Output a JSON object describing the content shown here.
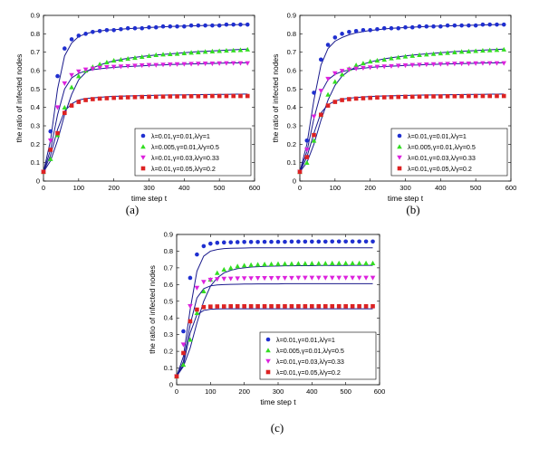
{
  "chart_data": [
    {
      "type": "scatter",
      "panel_label": "(a)",
      "xlabel": "time step t",
      "ylabel": "the ratio of infected nodes",
      "xlim": [
        0,
        600
      ],
      "ylim": [
        0,
        0.9
      ],
      "xticks": [
        "0",
        "100",
        "200",
        "300",
        "400",
        "500",
        "600"
      ],
      "yticks": [
        "0",
        "0.1",
        "0.2",
        "0.3",
        "0.4",
        "0.5",
        "0.6",
        "0.7",
        "0.8",
        "0.9"
      ],
      "grid": false,
      "legend_position": "bottom-right",
      "x": [
        0,
        20,
        40,
        60,
        80,
        100,
        120,
        140,
        160,
        180,
        200,
        220,
        240,
        260,
        280,
        300,
        320,
        340,
        360,
        380,
        400,
        420,
        440,
        460,
        480,
        500,
        520,
        540,
        560,
        580
      ],
      "series": [
        {
          "name": "λ=0.01,γ=0.01,λ/γ=1",
          "color": "#1f2fd0",
          "marker": "circle",
          "values": [
            0.05,
            0.27,
            0.57,
            0.72,
            0.77,
            0.79,
            0.8,
            0.81,
            0.815,
            0.82,
            0.82,
            0.825,
            0.83,
            0.83,
            0.83,
            0.835,
            0.835,
            0.84,
            0.84,
            0.84,
            0.84,
            0.845,
            0.845,
            0.845,
            0.845,
            0.845,
            0.85,
            0.85,
            0.85,
            0.85
          ],
          "fit": [
            0.05,
            0.22,
            0.5,
            0.68,
            0.75,
            0.785,
            0.8,
            0.81,
            0.815,
            0.82,
            0.822,
            0.825,
            0.828,
            0.83,
            0.832,
            0.834,
            0.836,
            0.838,
            0.84,
            0.841,
            0.842,
            0.843,
            0.844,
            0.845,
            0.846,
            0.847,
            0.848,
            0.849,
            0.85,
            0.85
          ]
        },
        {
          "name": "λ=0.005,γ=0.01,λ/γ=0.5",
          "color": "#33dd22",
          "marker": "triangle-up",
          "values": [
            0.05,
            0.12,
            0.25,
            0.4,
            0.51,
            0.57,
            0.6,
            0.62,
            0.635,
            0.645,
            0.655,
            0.66,
            0.665,
            0.67,
            0.675,
            0.68,
            0.685,
            0.688,
            0.69,
            0.692,
            0.695,
            0.698,
            0.7,
            0.703,
            0.705,
            0.707,
            0.709,
            0.71,
            0.712,
            0.715
          ],
          "fit": [
            0.05,
            0.11,
            0.22,
            0.36,
            0.47,
            0.55,
            0.59,
            0.615,
            0.63,
            0.643,
            0.653,
            0.66,
            0.667,
            0.672,
            0.677,
            0.681,
            0.685,
            0.688,
            0.691,
            0.694,
            0.697,
            0.7,
            0.703,
            0.705,
            0.707,
            0.709,
            0.711,
            0.713,
            0.715,
            0.717
          ]
        },
        {
          "name": "λ=0.01,γ=0.03,λ/γ=0.33",
          "color": "#dd22dd",
          "marker": "triangle-down",
          "values": [
            0.05,
            0.22,
            0.4,
            0.53,
            0.575,
            0.595,
            0.605,
            0.61,
            0.615,
            0.618,
            0.62,
            0.622,
            0.624,
            0.626,
            0.628,
            0.63,
            0.63,
            0.632,
            0.633,
            0.634,
            0.635,
            0.636,
            0.637,
            0.638,
            0.638,
            0.639,
            0.64,
            0.64,
            0.64,
            0.64
          ],
          "fit": [
            0.05,
            0.17,
            0.36,
            0.5,
            0.56,
            0.585,
            0.598,
            0.605,
            0.61,
            0.614,
            0.617,
            0.62,
            0.622,
            0.624,
            0.626,
            0.628,
            0.63,
            0.631,
            0.633,
            0.634,
            0.635,
            0.636,
            0.637,
            0.638,
            0.639,
            0.64,
            0.641,
            0.642,
            0.642,
            0.643
          ]
        },
        {
          "name": "λ=0.01,γ=0.05,λ/γ=0.2",
          "color": "#dd2222",
          "marker": "square",
          "values": [
            0.05,
            0.17,
            0.26,
            0.37,
            0.41,
            0.43,
            0.44,
            0.445,
            0.448,
            0.45,
            0.452,
            0.454,
            0.455,
            0.456,
            0.457,
            0.458,
            0.458,
            0.459,
            0.46,
            0.46,
            0.46,
            0.461,
            0.461,
            0.461,
            0.462,
            0.462,
            0.462,
            0.462,
            0.462,
            0.462
          ],
          "fit": [
            0.05,
            0.14,
            0.28,
            0.38,
            0.42,
            0.44,
            0.448,
            0.452,
            0.455,
            0.458,
            0.46,
            0.461,
            0.462,
            0.463,
            0.464,
            0.465,
            0.466,
            0.467,
            0.467,
            0.468,
            0.468,
            0.469,
            0.469,
            0.47,
            0.47,
            0.471,
            0.471,
            0.472,
            0.472,
            0.473
          ]
        }
      ]
    },
    {
      "type": "scatter",
      "panel_label": "(b)",
      "xlabel": "time step t",
      "ylabel": "the ratio of infected nodes",
      "xlim": [
        0,
        600
      ],
      "ylim": [
        0,
        0.9
      ],
      "xticks": [
        "0",
        "100",
        "200",
        "300",
        "400",
        "500",
        "600"
      ],
      "yticks": [
        "0",
        "0.1",
        "0.2",
        "0.3",
        "0.4",
        "0.5",
        "0.6",
        "0.7",
        "0.8",
        "0.9"
      ],
      "grid": false,
      "legend_position": "bottom-right",
      "x": [
        0,
        20,
        40,
        60,
        80,
        100,
        120,
        140,
        160,
        180,
        200,
        220,
        240,
        260,
        280,
        300,
        320,
        340,
        360,
        380,
        400,
        420,
        440,
        460,
        480,
        500,
        520,
        540,
        560,
        580
      ],
      "series": [
        {
          "name": "λ=0.01,γ=0.01,λ/γ=1",
          "color": "#1f2fd0",
          "marker": "circle",
          "values": [
            0.05,
            0.22,
            0.48,
            0.66,
            0.74,
            0.78,
            0.8,
            0.81,
            0.815,
            0.82,
            0.82,
            0.825,
            0.83,
            0.83,
            0.83,
            0.835,
            0.835,
            0.84,
            0.84,
            0.84,
            0.84,
            0.845,
            0.845,
            0.845,
            0.845,
            0.845,
            0.85,
            0.85,
            0.85,
            0.85
          ],
          "fit": [
            0.05,
            0.2,
            0.44,
            0.63,
            0.72,
            0.76,
            0.78,
            0.795,
            0.805,
            0.812,
            0.818,
            0.822,
            0.826,
            0.83,
            0.832,
            0.834,
            0.836,
            0.838,
            0.84,
            0.841,
            0.842,
            0.843,
            0.844,
            0.845,
            0.846,
            0.847,
            0.848,
            0.849,
            0.85,
            0.85
          ]
        },
        {
          "name": "λ=0.005,γ=0.01,λ/γ=0.5",
          "color": "#33dd22",
          "marker": "triangle-up",
          "values": [
            0.05,
            0.1,
            0.22,
            0.36,
            0.47,
            0.54,
            0.58,
            0.61,
            0.63,
            0.64,
            0.65,
            0.655,
            0.66,
            0.667,
            0.672,
            0.677,
            0.681,
            0.685,
            0.688,
            0.691,
            0.694,
            0.697,
            0.7,
            0.703,
            0.705,
            0.707,
            0.709,
            0.711,
            0.713,
            0.715
          ],
          "fit": [
            0.05,
            0.1,
            0.2,
            0.33,
            0.44,
            0.52,
            0.57,
            0.6,
            0.62,
            0.635,
            0.647,
            0.656,
            0.664,
            0.67,
            0.675,
            0.68,
            0.684,
            0.688,
            0.691,
            0.694,
            0.697,
            0.7,
            0.703,
            0.705,
            0.707,
            0.709,
            0.711,
            0.713,
            0.715,
            0.717
          ]
        },
        {
          "name": "λ=0.01,γ=0.03,λ/γ=0.33",
          "color": "#dd22dd",
          "marker": "triangle-down",
          "values": [
            0.05,
            0.17,
            0.35,
            0.49,
            0.555,
            0.585,
            0.598,
            0.605,
            0.61,
            0.614,
            0.617,
            0.62,
            0.622,
            0.624,
            0.626,
            0.628,
            0.63,
            0.631,
            0.633,
            0.634,
            0.635,
            0.636,
            0.637,
            0.638,
            0.638,
            0.639,
            0.64,
            0.64,
            0.64,
            0.64
          ],
          "fit": [
            0.05,
            0.16,
            0.34,
            0.48,
            0.55,
            0.58,
            0.595,
            0.603,
            0.609,
            0.613,
            0.617,
            0.62,
            0.622,
            0.624,
            0.626,
            0.628,
            0.63,
            0.631,
            0.633,
            0.634,
            0.635,
            0.636,
            0.637,
            0.638,
            0.639,
            0.64,
            0.641,
            0.642,
            0.642,
            0.643
          ]
        },
        {
          "name": "λ=0.01,γ=0.05,λ/γ=0.2",
          "color": "#dd2222",
          "marker": "square",
          "values": [
            0.05,
            0.13,
            0.25,
            0.36,
            0.41,
            0.43,
            0.44,
            0.445,
            0.448,
            0.45,
            0.452,
            0.454,
            0.455,
            0.456,
            0.457,
            0.458,
            0.458,
            0.459,
            0.46,
            0.46,
            0.46,
            0.461,
            0.461,
            0.461,
            0.462,
            0.462,
            0.462,
            0.462,
            0.462,
            0.462
          ],
          "fit": [
            0.05,
            0.13,
            0.26,
            0.37,
            0.415,
            0.435,
            0.445,
            0.45,
            0.454,
            0.457,
            0.459,
            0.461,
            0.462,
            0.463,
            0.464,
            0.465,
            0.466,
            0.467,
            0.467,
            0.468,
            0.468,
            0.469,
            0.469,
            0.47,
            0.47,
            0.471,
            0.471,
            0.472,
            0.472,
            0.473
          ]
        }
      ]
    },
    {
      "type": "scatter",
      "panel_label": "(c)",
      "xlabel": "time step t",
      "ylabel": "the ratio of infected nodes",
      "xlim": [
        0,
        600
      ],
      "ylim": [
        0,
        0.9
      ],
      "xticks": [
        "0",
        "100",
        "200",
        "300",
        "400",
        "500",
        "600"
      ],
      "yticks": [
        "0",
        "0.1",
        "0.2",
        "0.3",
        "0.4",
        "0.5",
        "0.6",
        "0.7",
        "0.8",
        "0.9"
      ],
      "grid": false,
      "legend_position": "bottom-right",
      "x": [
        0,
        20,
        40,
        60,
        80,
        100,
        120,
        140,
        160,
        180,
        200,
        220,
        240,
        260,
        280,
        300,
        320,
        340,
        360,
        380,
        400,
        420,
        440,
        460,
        480,
        500,
        520,
        540,
        560,
        580
      ],
      "series": [
        {
          "name": "λ=0.01,γ=0.01,λ/γ=1",
          "color": "#1f2fd0",
          "marker": "circle",
          "values": [
            0.05,
            0.32,
            0.64,
            0.78,
            0.83,
            0.845,
            0.85,
            0.852,
            0.853,
            0.854,
            0.855,
            0.855,
            0.855,
            0.856,
            0.856,
            0.856,
            0.856,
            0.857,
            0.857,
            0.857,
            0.857,
            0.857,
            0.857,
            0.858,
            0.858,
            0.858,
            0.858,
            0.858,
            0.858,
            0.858
          ],
          "fit": [
            0.05,
            0.17,
            0.45,
            0.68,
            0.77,
            0.8,
            0.81,
            0.815,
            0.817,
            0.818,
            0.819,
            0.82,
            0.82,
            0.82,
            0.82,
            0.82,
            0.82,
            0.82,
            0.82,
            0.82,
            0.82,
            0.82,
            0.82,
            0.82,
            0.82,
            0.82,
            0.82,
            0.82,
            0.82,
            0.82
          ]
        },
        {
          "name": "λ=0.005,γ=0.01,λ/γ=0.5",
          "color": "#33dd22",
          "marker": "triangle-up",
          "values": [
            0.05,
            0.12,
            0.27,
            0.43,
            0.56,
            0.63,
            0.67,
            0.69,
            0.7,
            0.71,
            0.715,
            0.718,
            0.72,
            0.722,
            0.723,
            0.724,
            0.725,
            0.725,
            0.726,
            0.726,
            0.727,
            0.727,
            0.727,
            0.728,
            0.728,
            0.728,
            0.728,
            0.728,
            0.728,
            0.728
          ],
          "fit": [
            0.05,
            0.11,
            0.22,
            0.37,
            0.5,
            0.59,
            0.64,
            0.67,
            0.685,
            0.695,
            0.7,
            0.705,
            0.707,
            0.709,
            0.71,
            0.711,
            0.712,
            0.712,
            0.713,
            0.713,
            0.713,
            0.714,
            0.714,
            0.714,
            0.714,
            0.714,
            0.715,
            0.715,
            0.715,
            0.715
          ]
        },
        {
          "name": "λ=0.01,γ=0.03,λ/γ=0.33",
          "color": "#dd22dd",
          "marker": "triangle-down",
          "values": [
            0.05,
            0.24,
            0.47,
            0.58,
            0.615,
            0.628,
            0.632,
            0.634,
            0.635,
            0.636,
            0.637,
            0.637,
            0.638,
            0.638,
            0.638,
            0.639,
            0.639,
            0.639,
            0.64,
            0.64,
            0.64,
            0.64,
            0.64,
            0.64,
            0.64,
            0.64,
            0.64,
            0.64,
            0.64,
            0.64
          ],
          "fit": [
            0.05,
            0.14,
            0.36,
            0.52,
            0.575,
            0.592,
            0.598,
            0.6,
            0.601,
            0.602,
            0.603,
            0.603,
            0.604,
            0.604,
            0.604,
            0.604,
            0.605,
            0.605,
            0.605,
            0.605,
            0.605,
            0.605,
            0.605,
            0.605,
            0.605,
            0.605,
            0.605,
            0.605,
            0.605,
            0.605
          ]
        },
        {
          "name": "λ=0.01,γ=0.05,λ/γ=0.2",
          "color": "#dd2222",
          "marker": "square",
          "values": [
            0.05,
            0.19,
            0.38,
            0.45,
            0.465,
            0.468,
            0.469,
            0.469,
            0.47,
            0.47,
            0.47,
            0.47,
            0.47,
            0.47,
            0.47,
            0.47,
            0.47,
            0.47,
            0.47,
            0.47,
            0.47,
            0.47,
            0.47,
            0.47,
            0.47,
            0.47,
            0.47,
            0.47,
            0.47,
            0.47
          ],
          "fit": [
            0.05,
            0.12,
            0.31,
            0.42,
            0.445,
            0.452,
            0.454,
            0.455,
            0.455,
            0.455,
            0.455,
            0.455,
            0.455,
            0.455,
            0.455,
            0.455,
            0.455,
            0.455,
            0.455,
            0.455,
            0.455,
            0.455,
            0.455,
            0.455,
            0.455,
            0.455,
            0.455,
            0.455,
            0.455,
            0.455
          ]
        }
      ]
    }
  ]
}
